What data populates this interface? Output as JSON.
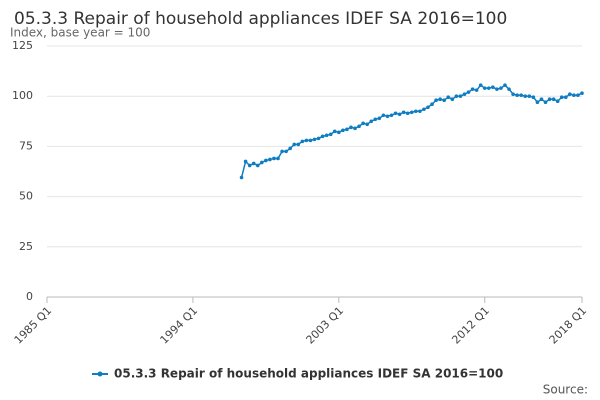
{
  "chart_data": {
    "type": "line",
    "title": "05.3.3 Repair of household appliances IDEF SA 2016=100",
    "subtitle": "Index, base year = 100",
    "source": "Source:",
    "categories": [
      "1985 Q1",
      null,
      null,
      null,
      null,
      null,
      null,
      null,
      null,
      null,
      null,
      null,
      null,
      null,
      null,
      null,
      null,
      null,
      null,
      null,
      null,
      null,
      null,
      null,
      null,
      null,
      null,
      null,
      null,
      null,
      null,
      null,
      null,
      null,
      null,
      null,
      "1994 Q1",
      null,
      null,
      null,
      null,
      null,
      null,
      null,
      null,
      null,
      null,
      null,
      null,
      null,
      null,
      null,
      null,
      null,
      null,
      null,
      null,
      null,
      null,
      null,
      null,
      null,
      null,
      null,
      null,
      null,
      null,
      null,
      null,
      null,
      null,
      null,
      "2003 Q1",
      null,
      null,
      null,
      null,
      null,
      null,
      null,
      null,
      null,
      null,
      null,
      null,
      null,
      null,
      null,
      null,
      null,
      null,
      null,
      null,
      null,
      null,
      null,
      null,
      null,
      null,
      null,
      null,
      null,
      null,
      null,
      null,
      null,
      null,
      null,
      "2012 Q1",
      null,
      null,
      null,
      null,
      null,
      null,
      null,
      null,
      null,
      null,
      null,
      null,
      null,
      null,
      null,
      null,
      null,
      null,
      null,
      null,
      null,
      null,
      null,
      "2018 Q1"
    ],
    "series": [
      {
        "name": "05.3.3 Repair of household appliances IDEF SA 2016=100",
        "color": "#0f7dc2",
        "values": [
          null,
          null,
          null,
          null,
          null,
          null,
          null,
          null,
          null,
          null,
          null,
          null,
          null,
          null,
          null,
          null,
          null,
          null,
          null,
          null,
          null,
          null,
          null,
          null,
          null,
          null,
          null,
          null,
          null,
          null,
          null,
          null,
          null,
          null,
          null,
          null,
          null,
          null,
          null,
          null,
          null,
          null,
          null,
          null,
          null,
          null,
          null,
          null,
          59.5,
          67.5,
          65.5,
          66.5,
          65.5,
          67,
          68,
          68.5,
          69,
          69,
          72.5,
          72.5,
          74,
          76,
          76,
          77.5,
          78,
          78,
          78.5,
          79,
          80,
          80.5,
          81,
          82.5,
          82,
          83,
          83.5,
          84.5,
          84,
          85,
          86.5,
          86,
          87.5,
          88.5,
          89,
          90.5,
          90,
          90.5,
          91.5,
          91,
          92,
          91.5,
          92,
          92.5,
          92.5,
          93.5,
          94.5,
          96,
          98,
          98.5,
          98,
          99.5,
          98.5,
          100,
          100,
          101,
          102,
          103.5,
          103,
          105.5,
          104,
          104,
          104.5,
          103.5,
          104,
          105.5,
          103.5,
          101,
          100.5,
          100.5,
          100,
          100,
          99.5,
          97,
          98.5,
          97,
          98.5,
          98.5,
          97.5,
          99.5,
          99.5,
          101,
          100.5,
          100.5,
          101.5
        ]
      }
    ],
    "ylim": [
      0,
      125
    ],
    "yticks": [
      0,
      25,
      50,
      75,
      100,
      125
    ],
    "grid": true
  }
}
